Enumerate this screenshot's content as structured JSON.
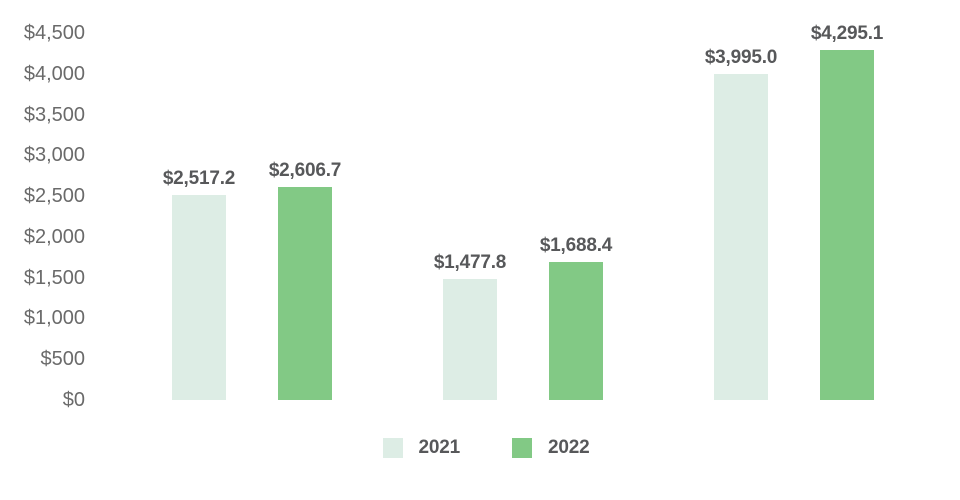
{
  "chart_data": {
    "type": "bar",
    "title": "",
    "xlabel": "",
    "ylabel": "",
    "categories": [
      "",
      "",
      ""
    ],
    "series": [
      {
        "name": "2021",
        "color": "#ddede5",
        "values": [
          2517.2,
          1477.8,
          3995.0
        ],
        "data_labels": [
          "$2,517.2",
          "$1,477.8",
          "$3,995.0"
        ]
      },
      {
        "name": "2022",
        "color": "#82c985",
        "values": [
          2606.7,
          1688.4,
          4295.1
        ],
        "data_labels": [
          "$2,606.7",
          "$1,688.4",
          "$4,295.1"
        ]
      }
    ],
    "ylim": [
      0,
      4500
    ],
    "y_tick_step": 500,
    "y_tick_labels": [
      "$0",
      "$500",
      "$1,000",
      "$1,500",
      "$2,000",
      "$2,500",
      "$3,000",
      "$3,500",
      "$4,000",
      "$4,500"
    ],
    "grid": false,
    "legend_position": "bottom"
  },
  "colors": {
    "background": "#ffffff",
    "series_2021": "#ddede5",
    "series_2022": "#82c985",
    "value_label_text": "#57585a",
    "axis_tick_text": "#6a6a6a"
  }
}
